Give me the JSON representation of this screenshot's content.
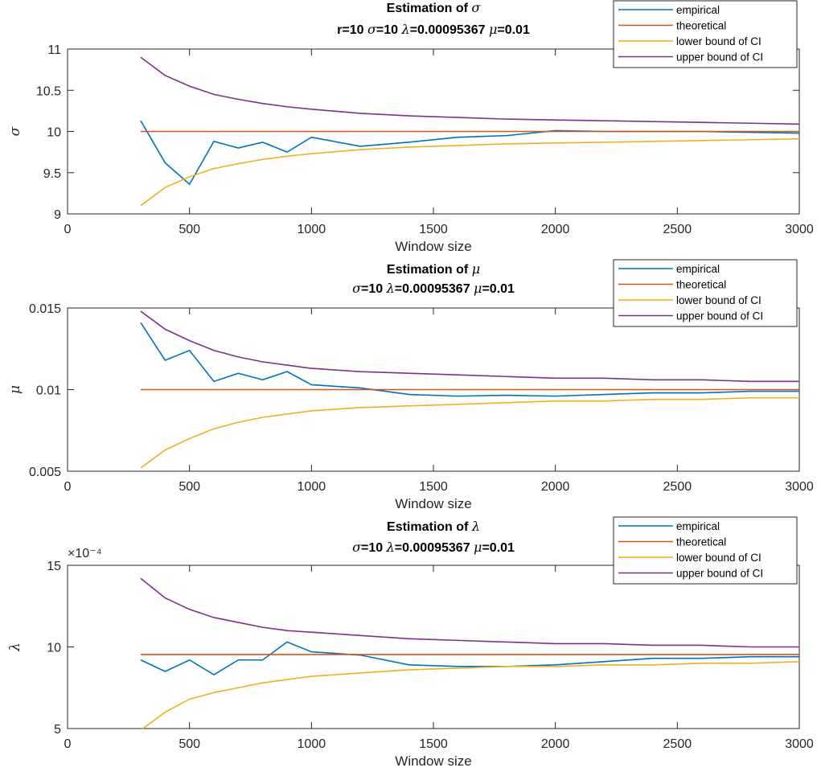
{
  "chart_data": [
    {
      "type": "line",
      "title_line1": "Estimation of σ",
      "title_line2": "r=10  σ=10  λ=0.00095367  μ=0.01",
      "xlabel": "Window size",
      "ylabel": "σ",
      "xlim": [
        0,
        3000
      ],
      "ylim": [
        9,
        11
      ],
      "xticks": [
        0,
        500,
        1000,
        1500,
        2000,
        2500,
        3000
      ],
      "yticks": [
        "9",
        "9.5",
        "10",
        "10.5",
        "11"
      ],
      "ytick_values": [
        9,
        9.5,
        10,
        10.5,
        11
      ],
      "exponent_label": "",
      "grid": false,
      "legend_position": "top-right",
      "x": [
        300,
        400,
        500,
        600,
        700,
        800,
        900,
        1000,
        1200,
        1400,
        1600,
        1800,
        2000,
        2200,
        2400,
        2600,
        2800,
        3000
      ],
      "series": [
        {
          "name": "empirical",
          "color": "#0072BD",
          "values": [
            10.13,
            9.62,
            9.36,
            9.88,
            9.8,
            9.87,
            9.75,
            9.93,
            9.82,
            9.87,
            9.93,
            9.95,
            10.01,
            10.0,
            10.0,
            10.0,
            9.99,
            9.98
          ]
        },
        {
          "name": "theoretical",
          "color": "#D95319",
          "values": [
            10,
            10,
            10,
            10,
            10,
            10,
            10,
            10,
            10,
            10,
            10,
            10,
            10,
            10,
            10,
            10,
            10,
            10
          ]
        },
        {
          "name": "lower bound of CI",
          "color": "#EDB120",
          "values": [
            9.1,
            9.32,
            9.45,
            9.55,
            9.61,
            9.66,
            9.7,
            9.73,
            9.78,
            9.81,
            9.83,
            9.85,
            9.86,
            9.87,
            9.88,
            9.89,
            9.9,
            9.91
          ]
        },
        {
          "name": "upper bound of CI",
          "color": "#7E2F8E",
          "values": [
            10.9,
            10.68,
            10.55,
            10.45,
            10.39,
            10.34,
            10.3,
            10.27,
            10.22,
            10.19,
            10.17,
            10.15,
            10.14,
            10.13,
            10.12,
            10.11,
            10.1,
            10.09
          ]
        }
      ]
    },
    {
      "type": "line",
      "title_line1": "Estimation of μ",
      "title_line2": "σ=10  λ=0.00095367  μ=0.01",
      "xlabel": "Window size",
      "ylabel": "μ",
      "xlim": [
        0,
        3000
      ],
      "ylim": [
        0.005,
        0.015
      ],
      "xticks": [
        0,
        500,
        1000,
        1500,
        2000,
        2500,
        3000
      ],
      "yticks": [
        "0.005",
        "0.01",
        "0.015"
      ],
      "ytick_values": [
        0.005,
        0.01,
        0.015
      ],
      "exponent_label": "",
      "grid": false,
      "legend_position": "top-right",
      "x": [
        300,
        400,
        500,
        600,
        700,
        800,
        900,
        1000,
        1200,
        1400,
        1600,
        1800,
        2000,
        2200,
        2400,
        2600,
        2800,
        3000
      ],
      "series": [
        {
          "name": "empirical",
          "color": "#0072BD",
          "values": [
            0.0141,
            0.0118,
            0.0124,
            0.0105,
            0.011,
            0.0106,
            0.0111,
            0.0103,
            0.0101,
            0.0097,
            0.0096,
            0.00965,
            0.0096,
            0.0097,
            0.0098,
            0.0098,
            0.0099,
            0.0099
          ]
        },
        {
          "name": "theoretical",
          "color": "#D95319",
          "values": [
            0.01,
            0.01,
            0.01,
            0.01,
            0.01,
            0.01,
            0.01,
            0.01,
            0.01,
            0.01,
            0.01,
            0.01,
            0.01,
            0.01,
            0.01,
            0.01,
            0.01,
            0.01
          ]
        },
        {
          "name": "lower bound of CI",
          "color": "#EDB120",
          "values": [
            0.0052,
            0.0063,
            0.007,
            0.0076,
            0.008,
            0.0083,
            0.0085,
            0.0087,
            0.0089,
            0.009,
            0.0091,
            0.0092,
            0.0093,
            0.0093,
            0.0094,
            0.0094,
            0.0095,
            0.0095
          ]
        },
        {
          "name": "upper bound of CI",
          "color": "#7E2F8E",
          "values": [
            0.0148,
            0.0137,
            0.013,
            0.0124,
            0.012,
            0.0117,
            0.0115,
            0.0113,
            0.0111,
            0.011,
            0.0109,
            0.0108,
            0.0107,
            0.0107,
            0.0106,
            0.0106,
            0.0105,
            0.0105
          ]
        }
      ]
    },
    {
      "type": "line",
      "title_line1": "Estimation of λ",
      "title_line2": "σ=10  λ=0.00095367  μ=0.01",
      "xlabel": "Window size",
      "ylabel": "λ",
      "xlim": [
        0,
        3000
      ],
      "ylim": [
        5,
        15
      ],
      "xticks": [
        0,
        500,
        1000,
        1500,
        2000,
        2500,
        3000
      ],
      "yticks": [
        "5",
        "10",
        "15"
      ],
      "ytick_values": [
        5,
        10,
        15
      ],
      "exponent_label": "×10⁻⁴",
      "grid": false,
      "legend_position": "top-right",
      "x": [
        300,
        400,
        500,
        600,
        700,
        800,
        900,
        1000,
        1200,
        1400,
        1600,
        1800,
        2000,
        2200,
        2400,
        2600,
        2800,
        3000
      ],
      "series": [
        {
          "name": "empirical",
          "color": "#0072BD",
          "values": [
            9.2,
            8.5,
            9.2,
            8.3,
            9.2,
            9.2,
            10.3,
            9.7,
            9.5,
            8.9,
            8.8,
            8.8,
            8.9,
            9.1,
            9.3,
            9.3,
            9.4,
            9.4
          ]
        },
        {
          "name": "theoretical",
          "color": "#D95319",
          "values": [
            9.5367,
            9.5367,
            9.5367,
            9.5367,
            9.5367,
            9.5367,
            9.5367,
            9.5367,
            9.5367,
            9.5367,
            9.5367,
            9.5367,
            9.5367,
            9.5367,
            9.5367,
            9.5367,
            9.5367,
            9.5367
          ]
        },
        {
          "name": "lower bound of CI",
          "color": "#EDB120",
          "values": [
            4.9,
            6.0,
            6.8,
            7.2,
            7.5,
            7.8,
            8.0,
            8.2,
            8.4,
            8.6,
            8.7,
            8.8,
            8.8,
            8.9,
            8.9,
            9.0,
            9.0,
            9.1
          ]
        },
        {
          "name": "upper bound of CI",
          "color": "#7E2F8E",
          "values": [
            14.2,
            13.0,
            12.3,
            11.8,
            11.5,
            11.2,
            11.0,
            10.9,
            10.7,
            10.5,
            10.4,
            10.3,
            10.2,
            10.2,
            10.1,
            10.1,
            10.0,
            10.0
          ]
        }
      ]
    }
  ]
}
